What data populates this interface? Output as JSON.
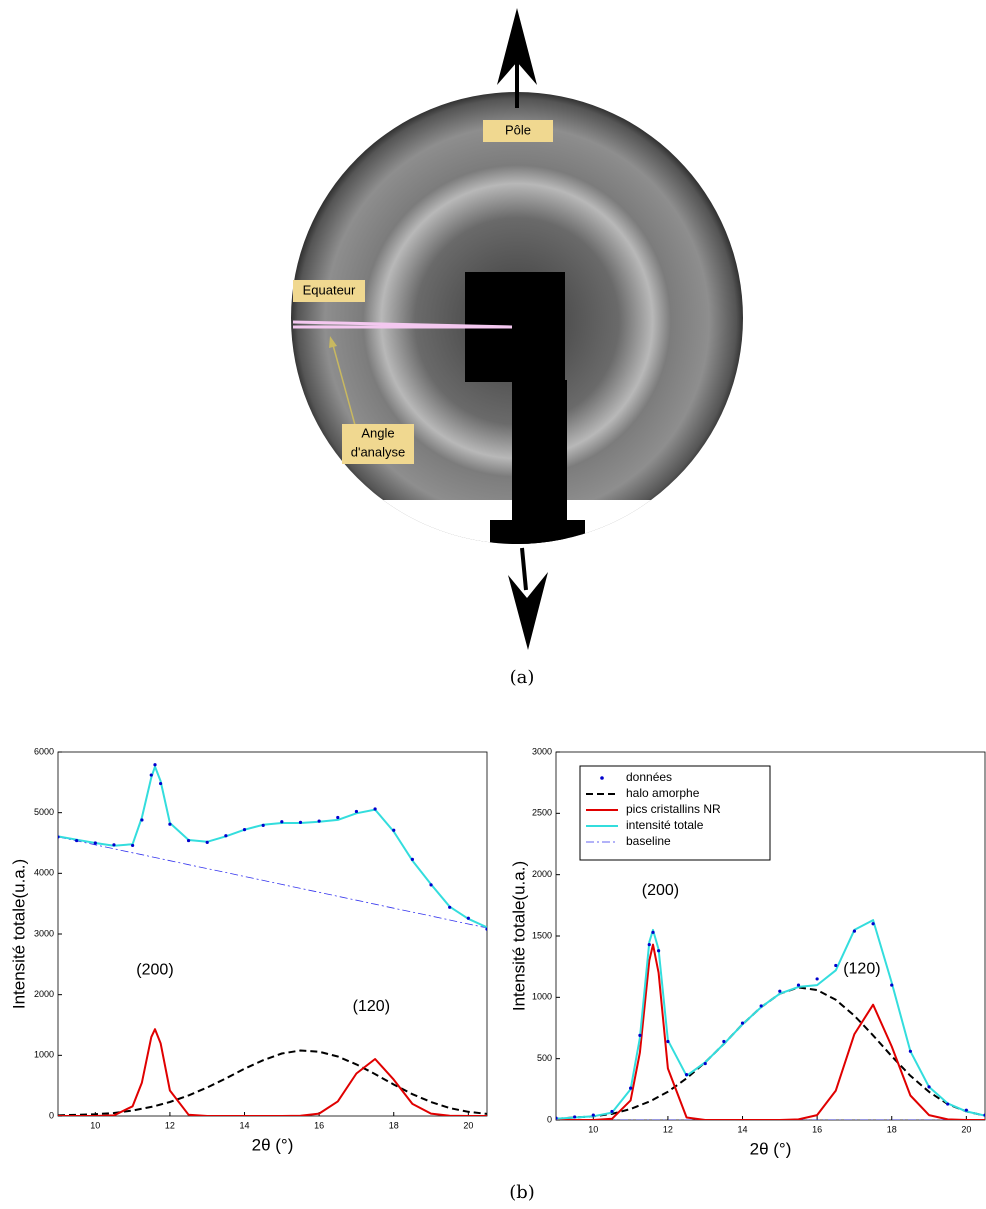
{
  "image": {
    "labels": [
      "Pôle",
      "Equateur"
    ],
    "angle_label": [
      "Angle",
      "d'analyse"
    ],
    "caption": "(a)"
  },
  "caption_b": "(b)",
  "chart_data": [
    {
      "type": "line",
      "xlabel": "2θ (°)",
      "ylabel": "Intensité totale(u.a.)",
      "xlim": [
        9,
        20.5
      ],
      "ylim": [
        0,
        6000
      ],
      "xticks": [
        10,
        12,
        14,
        16,
        18,
        20
      ],
      "yticks": [
        0,
        1000,
        2000,
        3000,
        4000,
        5000,
        6000
      ],
      "x": [
        9,
        9.5,
        10,
        10.5,
        11,
        11.25,
        11.5,
        11.6,
        11.75,
        12,
        12.5,
        13,
        13.5,
        14,
        14.5,
        15,
        15.5,
        16,
        16.5,
        17,
        17.5,
        18,
        18.5,
        19,
        19.5,
        20,
        20.5
      ],
      "series": [
        {
          "color": "#0000cc",
          "linestyle": "dots",
          "values": [
            4600,
            4540,
            4500,
            4470,
            4460,
            4880,
            5620,
            5790,
            5480,
            4810,
            4540,
            4510,
            4620,
            4720,
            4790,
            4850,
            4840,
            4860,
            4920,
            5020,
            5060,
            4710,
            4230,
            3810,
            3440,
            3260,
            3080
          ]
        },
        {
          "color": "#000000",
          "linestyle": "dashed",
          "values": [
            10,
            20,
            30,
            50,
            90,
            120,
            150,
            165,
            190,
            230,
            340,
            470,
            620,
            780,
            920,
            1030,
            1080,
            1060,
            980,
            850,
            690,
            520,
            360,
            230,
            130,
            70,
            35
          ]
        },
        {
          "color": "#e00000",
          "linestyle": "solid",
          "values": [
            0,
            0,
            0,
            10,
            160,
            550,
            1300,
            1430,
            1200,
            420,
            20,
            0,
            0,
            0,
            0,
            0,
            5,
            40,
            240,
            700,
            940,
            600,
            200,
            40,
            5,
            0,
            0
          ]
        },
        {
          "color": "#33dddd",
          "linestyle": "solid",
          "values": [
            4610,
            4555,
            4500,
            4455,
            4480,
            4920,
            5580,
            5760,
            5520,
            4830,
            4550,
            4520,
            4610,
            4720,
            4800,
            4830,
            4830,
            4850,
            4880,
            4990,
            5050,
            4690,
            4210,
            3820,
            3450,
            3250,
            3110
          ]
        },
        {
          "color": "#3333ee",
          "linestyle": "dashdot",
          "values": [
            4600,
            4535,
            4470,
            4404,
            4339,
            4307,
            4274,
            4261,
            4241,
            4209,
            4143,
            4078,
            4013,
            3948,
            3883,
            3817,
            3752,
            3687,
            3622,
            3557,
            3491,
            3426,
            3361,
            3296,
            3230,
            3165,
            3100
          ]
        }
      ],
      "annotations": [
        {
          "text": "(200)",
          "x": 11.6,
          "y": 2400
        },
        {
          "text": "(120)",
          "x": 17.4,
          "y": 1800
        }
      ]
    },
    {
      "type": "line",
      "xlabel": "2θ (°)",
      "ylabel": "Intensité totale(u.a.)",
      "legend": "upper left",
      "xlim": [
        9,
        20.5
      ],
      "ylim": [
        0,
        3000
      ],
      "xticks": [
        10,
        12,
        14,
        16,
        18,
        20
      ],
      "yticks": [
        0,
        500,
        1000,
        1500,
        2000,
        2500,
        3000
      ],
      "x": [
        9,
        9.5,
        10,
        10.5,
        11,
        11.25,
        11.5,
        11.6,
        11.75,
        12,
        12.5,
        13,
        13.5,
        14,
        14.5,
        15,
        15.5,
        16,
        16.5,
        17,
        17.5,
        18,
        18.5,
        19,
        19.5,
        20,
        20.5
      ],
      "series": [
        {
          "name": "données",
          "color": "#0000cc",
          "linestyle": "dots",
          "values": [
            15,
            25,
            40,
            70,
            260,
            690,
            1430,
            1530,
            1380,
            640,
            370,
            460,
            640,
            790,
            930,
            1050,
            1100,
            1150,
            1260,
            1540,
            1600,
            1100,
            560,
            270,
            130,
            80,
            40
          ]
        },
        {
          "name": "halo amorphe",
          "color": "#000000",
          "linestyle": "dashed",
          "values": [
            10,
            20,
            30,
            50,
            90,
            120,
            150,
            165,
            190,
            230,
            340,
            470,
            620,
            780,
            920,
            1030,
            1080,
            1060,
            980,
            850,
            690,
            520,
            360,
            230,
            130,
            70,
            35
          ]
        },
        {
          "name": "pics cristallins NR",
          "color": "#e00000",
          "linestyle": "solid",
          "values": [
            0,
            0,
            0,
            10,
            160,
            550,
            1300,
            1430,
            1200,
            420,
            20,
            0,
            0,
            0,
            0,
            0,
            5,
            40,
            240,
            700,
            940,
            600,
            200,
            40,
            5,
            0,
            0
          ]
        },
        {
          "name": "intensité totale",
          "color": "#33dddd",
          "linestyle": "solid",
          "values": [
            10,
            20,
            30,
            60,
            250,
            670,
            1450,
            1550,
            1390,
            650,
            360,
            470,
            620,
            780,
            920,
            1030,
            1085,
            1100,
            1220,
            1550,
            1630,
            1120,
            560,
            270,
            135,
            70,
            35
          ]
        },
        {
          "name": "baseline",
          "color": "#3333ee",
          "linestyle": "dashdot",
          "values": [
            0,
            0,
            0,
            0,
            0,
            0,
            0,
            0,
            0,
            0,
            0,
            0,
            0,
            0,
            0,
            0,
            0,
            0,
            0,
            0,
            0,
            0,
            0,
            0,
            0,
            0,
            0
          ]
        }
      ],
      "annotations": [
        {
          "text": "(200)",
          "x": 11.8,
          "y": 1870
        },
        {
          "text": "(120)",
          "x": 17.2,
          "y": 1230
        }
      ]
    }
  ]
}
